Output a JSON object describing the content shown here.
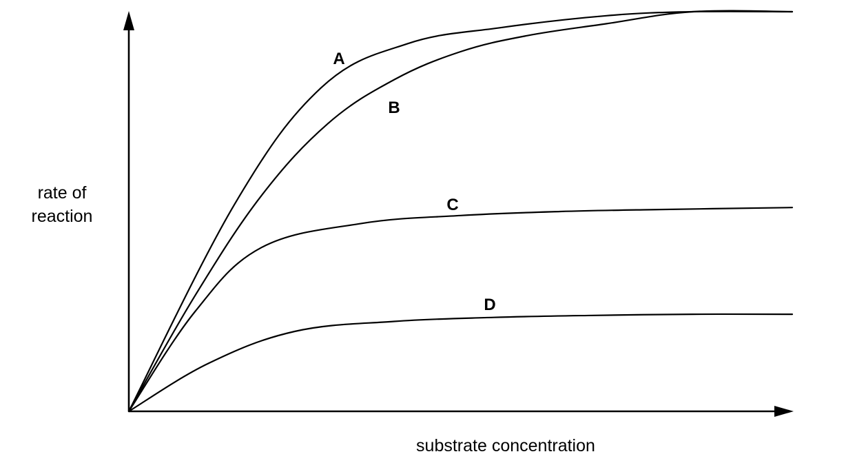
{
  "chart_data": {
    "type": "line",
    "xlabel": "substrate concentration",
    "ylabel_lines": [
      "rate of",
      "reaction"
    ],
    "xlim": [
      0,
      100
    ],
    "ylim": [
      0,
      100
    ],
    "grid": false,
    "legend": "none",
    "series": [
      {
        "name": "A",
        "x": [
          0,
          16,
          29,
          42,
          56,
          72,
          85,
          100
        ],
        "y": [
          0,
          52,
          81,
          92,
          96,
          99,
          100,
          100
        ]
      },
      {
        "name": "B",
        "x": [
          0,
          10,
          20,
          30,
          40,
          50,
          60,
          72,
          85,
          100
        ],
        "y": [
          0,
          29,
          54,
          72,
          83,
          90,
          94,
          97,
          100,
          100
        ]
      },
      {
        "name": "C",
        "x": [
          0,
          10,
          20,
          35,
          50,
          65,
          80,
          100
        ],
        "y": [
          0,
          25,
          41,
          47,
          49,
          50,
          50.5,
          51
        ]
      },
      {
        "name": "D",
        "x": [
          0,
          12,
          25,
          40,
          55,
          70,
          85,
          100
        ],
        "y": [
          0,
          12,
          20,
          22.5,
          23.5,
          24,
          24.3,
          24.3
        ]
      }
    ]
  }
}
